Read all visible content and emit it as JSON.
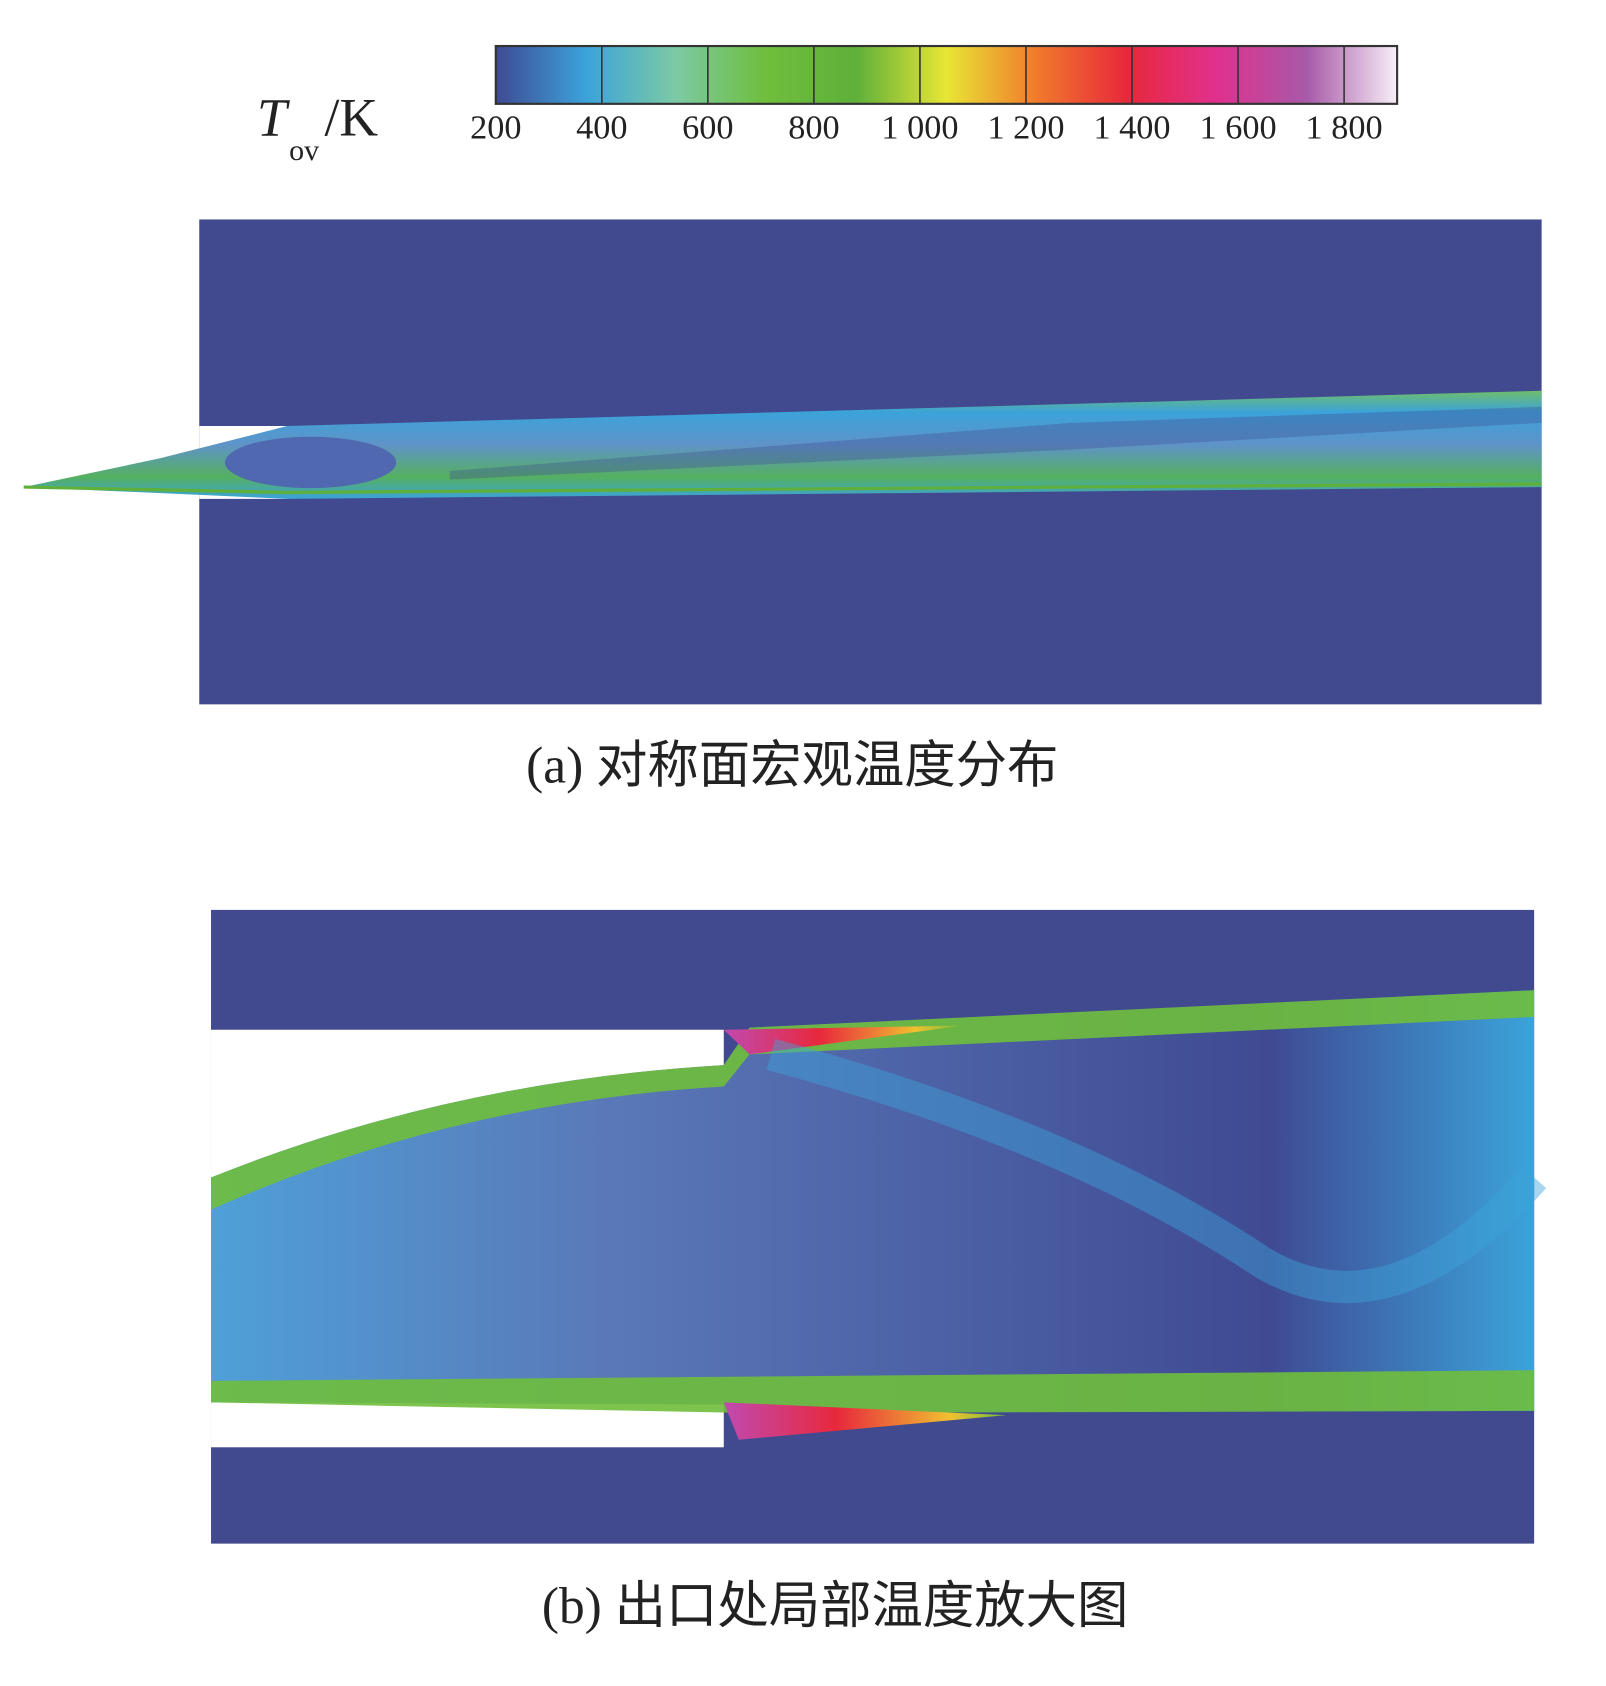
{
  "chart_data": {
    "type": "contour",
    "colorbar_label": {
      "symbol": "T",
      "subscript": "ov",
      "unit": "/K"
    },
    "xlim": [
      200,
      1900
    ],
    "xticks": [
      200,
      400,
      600,
      800,
      {
        "value": 1000,
        "label": "1 000"
      },
      {
        "value": 1200,
        "label": "1 200"
      },
      {
        "value": 1400,
        "label": "1 400"
      },
      {
        "value": 1600,
        "label": "1 600"
      },
      {
        "value": 1800,
        "label": "1 800"
      }
    ],
    "colormap": [
      "#3f4a93",
      "#3ba3da",
      "#7ccaa4",
      "#6fbe3c",
      "#5fb03a",
      "#e8e635",
      "#f07a2c",
      "#e8283c",
      "#e0308e",
      "#a75aa8",
      "#f7eef7"
    ],
    "panels": [
      {
        "caption": "(a) 对称面宏观温度分布"
      },
      {
        "caption": "(b) 出口处局部温度放大图"
      }
    ]
  }
}
